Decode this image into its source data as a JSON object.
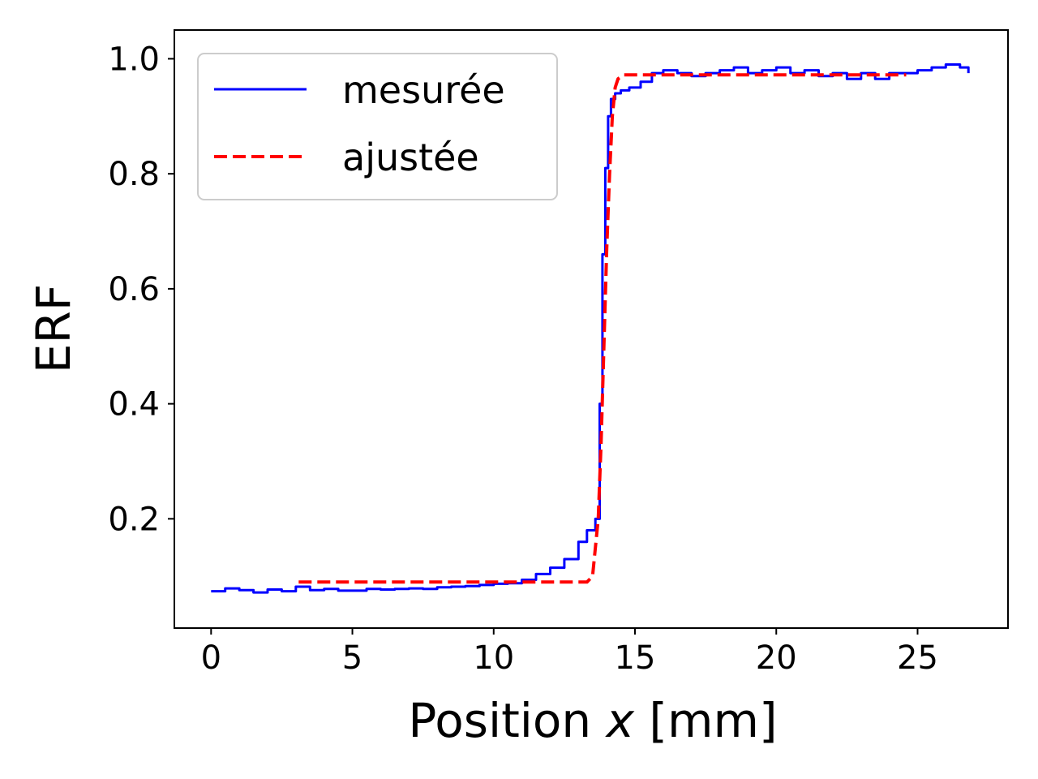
{
  "chart_data": {
    "type": "line",
    "xlabel": {
      "prefix": "Position ",
      "var": "x",
      "suffix": " [mm]"
    },
    "ylabel": "ERF",
    "xlim": [
      -1.3,
      28.2
    ],
    "ylim": [
      0.01,
      1.05
    ],
    "xticks": [
      0,
      5,
      10,
      15,
      20,
      25
    ],
    "yticks": [
      0.2,
      0.4,
      0.6,
      0.8,
      1.0
    ],
    "xtick_labels": [
      "0",
      "5",
      "10",
      "15",
      "20",
      "25"
    ],
    "ytick_labels": [
      "0.2",
      "0.4",
      "0.6",
      "0.8",
      "1.0"
    ],
    "grid": false,
    "legend_position": "upper-left",
    "series": [
      {
        "name": "mesurée",
        "color": "#0000ff",
        "style": "solid-step",
        "x": [
          0,
          0.5,
          1,
          1.5,
          2,
          2.5,
          3,
          3.5,
          4,
          4.5,
          5,
          5.5,
          6,
          6.5,
          7,
          7.5,
          8,
          8.5,
          9,
          9.5,
          10,
          10.5,
          11,
          11.5,
          12,
          12.5,
          13,
          13.3,
          13.6,
          13.75,
          13.85,
          13.95,
          14.05,
          14.15,
          14.3,
          14.5,
          14.8,
          15.2,
          15.6,
          16,
          16.5,
          17,
          17.5,
          18,
          18.5,
          19,
          19.5,
          20,
          20.5,
          21,
          21.5,
          22,
          22.5,
          23,
          23.5,
          24,
          24.5,
          25,
          25.5,
          26,
          26.5,
          26.8
        ],
        "y": [
          0.074,
          0.079,
          0.076,
          0.072,
          0.077,
          0.074,
          0.082,
          0.076,
          0.078,
          0.075,
          0.075,
          0.078,
          0.077,
          0.078,
          0.079,
          0.078,
          0.081,
          0.082,
          0.083,
          0.085,
          0.087,
          0.088,
          0.094,
          0.104,
          0.115,
          0.13,
          0.16,
          0.18,
          0.2,
          0.4,
          0.66,
          0.81,
          0.9,
          0.93,
          0.94,
          0.945,
          0.95,
          0.96,
          0.975,
          0.98,
          0.975,
          0.97,
          0.975,
          0.98,
          0.985,
          0.975,
          0.98,
          0.985,
          0.975,
          0.98,
          0.97,
          0.975,
          0.965,
          0.975,
          0.965,
          0.975,
          0.975,
          0.98,
          0.985,
          0.99,
          0.985,
          0.975
        ]
      },
      {
        "name": "ajustée",
        "color": "#ff0000",
        "style": "dashed",
        "x": [
          3.1,
          13.3,
          13.5,
          13.7,
          13.8,
          13.9,
          14.0,
          14.1,
          14.2,
          14.3,
          14.4,
          14.6,
          24.6
        ],
        "y": [
          0.09,
          0.09,
          0.1,
          0.2,
          0.33,
          0.5,
          0.67,
          0.8,
          0.9,
          0.95,
          0.965,
          0.972,
          0.972
        ]
      }
    ]
  }
}
